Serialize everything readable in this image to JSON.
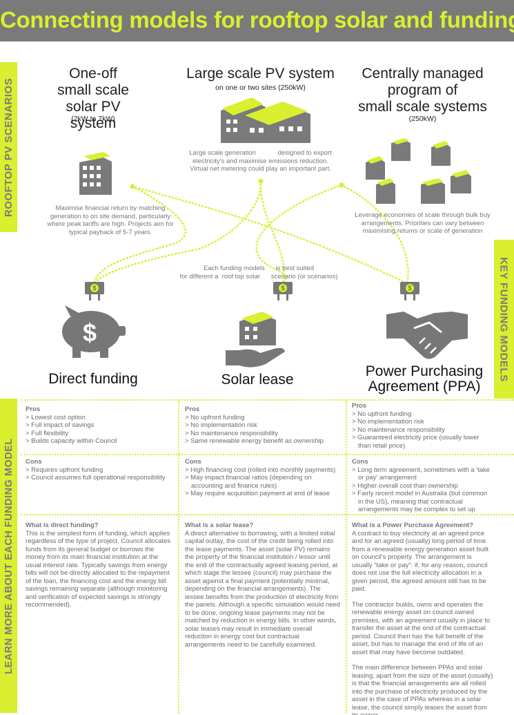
{
  "header": {
    "title": "Connecting models for rooftop solar and funding"
  },
  "side_tabs": {
    "left_top": "ROOFTOP PV SCENARIOS",
    "right": "KEY FUNDING MODELS",
    "left_bottom": "LEARN MORE ABOUT EACH FUNDING MODEL"
  },
  "scenarios": [
    {
      "title_lines": [
        "One-off",
        "small scale",
        "solar PV system"
      ],
      "subtitle": "(2kW to 7kW)",
      "description_lines": [
        "Maximise financial return by matching",
        "generation to on site demand, particularly",
        "where peak tariffs are high. Projects aim for",
        "typical  payback of 5-7 years."
      ]
    },
    {
      "title_lines": [
        "Large scale PV system"
      ],
      "subtitle": "on one or two sites (250kW)",
      "description_lines": [
        "Large scale generation            designed to export",
        "electricity's and maximise emissions reduction.",
        "Virtual net metering could play an important part."
      ]
    },
    {
      "title_lines": [
        "Centrally managed",
        "program of",
        "small scale systems"
      ],
      "subtitle": "(250kW)",
      "description_lines": [
        "Leverage economies of scale through bulk buy",
        "arrangements. Priorities can vary between",
        "maximising returns or scale of generation"
      ]
    }
  ],
  "funding_note_lines": [
    "Each funding models      is best suited",
    "for different a  roof top solar      scenario (or scenarios)"
  ],
  "funding_models": [
    {
      "title_lines": [
        "Direct funding"
      ],
      "icon": "piggy-bank-icon"
    },
    {
      "title_lines": [
        "Solar lease"
      ],
      "icon": "hand-holding-building-icon"
    },
    {
      "title_lines": [
        "Power Purchasing",
        "Agreement (PPA)"
      ],
      "icon": "handshake-icon"
    }
  ],
  "details": [
    {
      "pros_heading": "Pros",
      "pros": [
        "> Lowest cost option",
        "> Full impact of savings",
        "> Full flexibility",
        "> Builds capacity within Council"
      ],
      "cons_heading": "Cons",
      "cons": [
        "> Requires upfront funding",
        "> Council assumes full operational responsibility"
      ],
      "what_heading": "What is direct funding?",
      "what_paragraphs": [
        "This is the simplest form of funding, which applies regardless of the type of project. Council allocates funds from its general budget or borrows the money from its main financial institution at the usual interest rate. Typically savings from energy bills will not be directly allocated to the repayment of the loan, the financing cost and the energy bill savings remaining separate (although monitoring and verification of expected savings is strongly recommended)."
      ]
    },
    {
      "pros_heading": "Pros",
      "pros": [
        "> No upfront funding",
        "> No implementation risk",
        "> No maintenance responsibility",
        "> Same renewable energy benefit as ownership"
      ],
      "cons_heading": "Cons",
      "cons": [
        "> High financing cost (rolled into monthly payments)",
        "> May impact financial ratios (depending on accounting and finance rules)",
        "> May require acquisition payment at end of lease"
      ],
      "what_heading": "What is a solar lease?",
      "what_paragraphs": [
        "A direct alternative to borrowing, with a limited initial capital outlay, the cost of the credit being rolled into the lease payments. The asset (solar PV) remains the property of the financial institution / lessor until the end of the contractually agreed leasing period, at which stage the lessee (council) may purchase the asset against a final payment (potentially minimal, depending on the financial arrangements). The lessee benefits from the production of electricity from the panels. Although a specific simulation would need to be done, ongoing lease payments may not be matched by reduction in energy bills. In other words, solar leases may result in immediate overall reduction in energy cost but contractual arrangements need to be carefully examined."
      ]
    },
    {
      "pros_heading": "Pros",
      "pros": [
        "> No upfront funding",
        "> No implementation risk",
        "> No maintenance responsibility",
        "> Guaranteed electricity price (usually lower than retail price)"
      ],
      "cons_heading": "Cons",
      "cons": [
        "> Long term agreement, sometimes  with  a  'take or pay' arrangement",
        "> Higher overall cost than ownership",
        "> Fairly recent model in Australia (but common in the US), meaning that contractual arrangements may be  complex to set up"
      ],
      "what_heading": "What is a Power Purchase Agreement?",
      "what_paragraphs": [
        "A contract to buy electricity at an agreed price and for an agreed (usually) long period of time from a renewable energy generation asset built on council's property. The arrangement is usually “take or pay”: if, for any reason, council does not use the full electricity allocation in a given period, the agreed amount still has to be paid.",
        "The contractor builds, owns and operates the renewable energy asset on council owned premises, with an agreement usually in place to transfer the asset at the end of the contractual period. Council then has the full benefit of the asset, but has to manage the end of life of an asset that may have become outdated.",
        "The main difference between PPAs and solar leasing, apart from the size of the asset (usually) is that the financial arrangements are all rolled into the purchase of electricity produced by the asset in the case of PPAs whereas in a solar lease, the council simply leases the asset from its owner."
      ]
    }
  ],
  "colors": {
    "accent": "#d9ef2f",
    "header_bg": "#7a7a7a",
    "icon_gray": "#777777"
  }
}
